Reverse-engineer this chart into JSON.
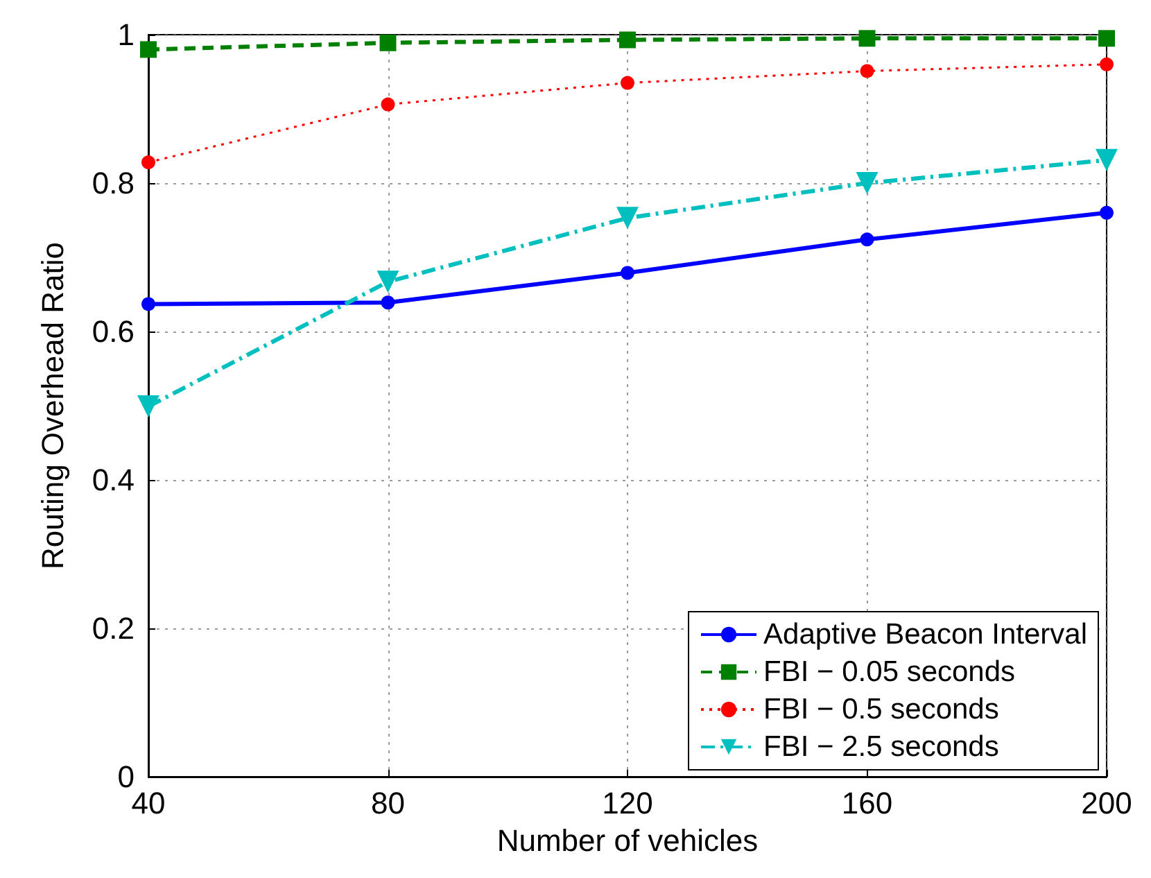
{
  "chart_data": {
    "type": "line",
    "xlabel": "Number of vehicles",
    "ylabel": "Routing Overhead Ratio",
    "x": [
      40,
      80,
      120,
      160,
      200
    ],
    "series": [
      {
        "name": "Adaptive Beacon Interval",
        "color": "#0000ff",
        "marker": "circle",
        "line_style": "solid",
        "values": [
          0.637,
          0.639,
          0.679,
          0.724,
          0.76
        ]
      },
      {
        "name": "FBI − 0.05 seconds",
        "color": "#008000",
        "marker": "square",
        "line_style": "dashed",
        "values": [
          0.98,
          0.989,
          0.993,
          0.995,
          0.995
        ]
      },
      {
        "name": "FBI − 0.5 seconds",
        "color": "#ff0000",
        "marker": "circle",
        "line_style": "dotted",
        "values": [
          0.828,
          0.906,
          0.935,
          0.951,
          0.96
        ]
      },
      {
        "name": "FBI − 2.5 seconds",
        "color": "#00bfbf",
        "marker": "triangle",
        "line_style": "dashed",
        "values": [
          0.499,
          0.667,
          0.753,
          0.8,
          0.831
        ]
      }
    ],
    "xlim": [
      40,
      200
    ],
    "xticks": [
      40,
      80,
      120,
      160,
      200
    ],
    "ylim": [
      0,
      1
    ],
    "yticks": [
      0,
      0.2,
      0.4,
      0.6,
      0.8,
      1
    ],
    "grid": true,
    "legend": "bottom right"
  }
}
